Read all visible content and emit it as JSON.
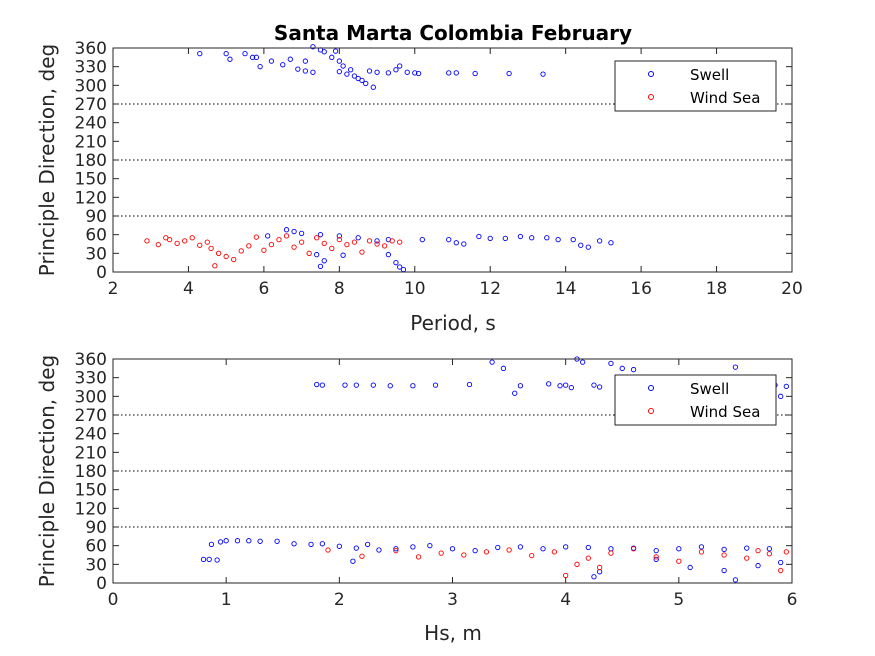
{
  "chart_data": [
    {
      "type": "scatter",
      "title": "Santa Marta Colombia February",
      "xlabel": "Period, s",
      "ylabel": "Principle Direction, deg",
      "xlim": [
        2,
        20
      ],
      "ylim": [
        0,
        360
      ],
      "xticks": [
        "2",
        "4",
        "6",
        "8",
        "10",
        "12",
        "14",
        "16",
        "18",
        "20"
      ],
      "yticks": [
        "0",
        "30",
        "60",
        "90",
        "120",
        "150",
        "180",
        "210",
        "240",
        "270",
        "300",
        "330",
        "360"
      ],
      "reference_lines": [
        90,
        180,
        270
      ],
      "grid": false,
      "legend_position": "top-right",
      "series": [
        {
          "name": "Swell",
          "color": "#0000ff",
          "marker": "open-circle",
          "points": [
            [
              4.3,
              351
            ],
            [
              5.0,
              351
            ],
            [
              5.1,
              342
            ],
            [
              5.5,
              351
            ],
            [
              5.7,
              345
            ],
            [
              5.8,
              345
            ],
            [
              5.9,
              330
            ],
            [
              6.2,
              339
            ],
            [
              6.5,
              333
            ],
            [
              6.7,
              342
            ],
            [
              6.9,
              326
            ],
            [
              7.1,
              323
            ],
            [
              7.3,
              321
            ],
            [
              7.1,
              339
            ],
            [
              7.3,
              362
            ],
            [
              7.5,
              357
            ],
            [
              7.6,
              354
            ],
            [
              7.9,
              355
            ],
            [
              7.8,
              345
            ],
            [
              8.0,
              339
            ],
            [
              8.1,
              331
            ],
            [
              8.3,
              325
            ],
            [
              8.0,
              322
            ],
            [
              8.2,
              318
            ],
            [
              8.4,
              315
            ],
            [
              8.5,
              311
            ],
            [
              8.6,
              308
            ],
            [
              8.7,
              303
            ],
            [
              8.9,
              297
            ],
            [
              8.8,
              323
            ],
            [
              9.0,
              321
            ],
            [
              9.3,
              320
            ],
            [
              9.5,
              325
            ],
            [
              9.6,
              331
            ],
            [
              9.8,
              321
            ],
            [
              10.0,
              320
            ],
            [
              10.1,
              319
            ],
            [
              10.9,
              320
            ],
            [
              11.1,
              320
            ],
            [
              11.6,
              319
            ],
            [
              12.5,
              319
            ],
            [
              13.4,
              318
            ],
            [
              6.1,
              58
            ],
            [
              6.6,
              68
            ],
            [
              6.8,
              65
            ],
            [
              7.0,
              62
            ],
            [
              7.5,
              60
            ],
            [
              8.0,
              58
            ],
            [
              8.5,
              55
            ],
            [
              9.0,
              50
            ],
            [
              9.3,
              52
            ],
            [
              10.2,
              52
            ],
            [
              10.9,
              52
            ],
            [
              11.1,
              47
            ],
            [
              11.3,
              45
            ],
            [
              11.7,
              57
            ],
            [
              12.0,
              54
            ],
            [
              12.4,
              54
            ],
            [
              12.8,
              57
            ],
            [
              13.1,
              55
            ],
            [
              13.5,
              55
            ],
            [
              13.8,
              52
            ],
            [
              14.2,
              52
            ],
            [
              14.4,
              43
            ],
            [
              14.6,
              40
            ],
            [
              14.9,
              50
            ],
            [
              15.2,
              47
            ],
            [
              7.4,
              28
            ],
            [
              7.6,
              18
            ],
            [
              7.5,
              9
            ],
            [
              8.1,
              27
            ],
            [
              9.3,
              28
            ],
            [
              9.5,
              15
            ],
            [
              9.6,
              8
            ],
            [
              9.7,
              4
            ]
          ]
        },
        {
          "name": "Wind Sea",
          "color": "#ff0000",
          "marker": "open-circle",
          "points": [
            [
              2.9,
              50
            ],
            [
              3.2,
              44
            ],
            [
              3.4,
              55
            ],
            [
              3.5,
              52
            ],
            [
              3.7,
              46
            ],
            [
              3.9,
              50
            ],
            [
              4.1,
              55
            ],
            [
              4.3,
              43
            ],
            [
              4.5,
              48
            ],
            [
              4.6,
              38
            ],
            [
              4.7,
              10
            ],
            [
              4.8,
              30
            ],
            [
              5.0,
              25
            ],
            [
              5.2,
              20
            ],
            [
              5.4,
              34
            ],
            [
              5.6,
              42
            ],
            [
              5.8,
              56
            ],
            [
              6.0,
              35
            ],
            [
              6.2,
              44
            ],
            [
              6.4,
              52
            ],
            [
              6.6,
              58
            ],
            [
              6.8,
              40
            ],
            [
              7.0,
              48
            ],
            [
              7.2,
              30
            ],
            [
              7.4,
              55
            ],
            [
              7.6,
              46
            ],
            [
              7.8,
              38
            ],
            [
              8.0,
              52
            ],
            [
              8.2,
              44
            ],
            [
              8.4,
              48
            ],
            [
              8.6,
              32
            ],
            [
              8.8,
              50
            ],
            [
              9.0,
              45
            ],
            [
              9.2,
              42
            ],
            [
              9.4,
              50
            ],
            [
              9.6,
              48
            ]
          ]
        }
      ]
    },
    {
      "type": "scatter",
      "title": "",
      "xlabel": "Hs, m",
      "ylabel": "Principle Direction, deg",
      "xlim": [
        0,
        6
      ],
      "ylim": [
        0,
        360
      ],
      "xticks": [
        "0",
        "1",
        "2",
        "3",
        "4",
        "5",
        "6"
      ],
      "yticks": [
        "0",
        "30",
        "60",
        "90",
        "120",
        "150",
        "180",
        "210",
        "240",
        "270",
        "300",
        "330",
        "360"
      ],
      "reference_lines": [
        90,
        180,
        270
      ],
      "grid": false,
      "legend_position": "top-right",
      "series": [
        {
          "name": "Swell",
          "color": "#0000ff",
          "marker": "open-circle",
          "points": [
            [
              1.8,
              319
            ],
            [
              1.85,
              318
            ],
            [
              2.05,
              318
            ],
            [
              2.15,
              318
            ],
            [
              2.3,
              318
            ],
            [
              2.45,
              317
            ],
            [
              2.65,
              317
            ],
            [
              2.85,
              318
            ],
            [
              3.15,
              319
            ],
            [
              3.35,
              355
            ],
            [
              3.45,
              345
            ],
            [
              3.55,
              305
            ],
            [
              3.6,
              317
            ],
            [
              3.85,
              320
            ],
            [
              3.95,
              317
            ],
            [
              4.0,
              318
            ],
            [
              4.05,
              314
            ],
            [
              4.1,
              360
            ],
            [
              4.15,
              355
            ],
            [
              4.25,
              318
            ],
            [
              4.3,
              315
            ],
            [
              4.4,
              353
            ],
            [
              4.5,
              345
            ],
            [
              4.6,
              343
            ],
            [
              4.75,
              317
            ],
            [
              4.9,
              320
            ],
            [
              5.05,
              318
            ],
            [
              5.2,
              322
            ],
            [
              5.35,
              325
            ],
            [
              5.5,
              347
            ],
            [
              5.7,
              328
            ],
            [
              5.85,
              318
            ],
            [
              5.9,
              300
            ],
            [
              5.95,
              316
            ],
            [
              0.8,
              38
            ],
            [
              0.85,
              38
            ],
            [
              0.87,
              62
            ],
            [
              0.95,
              66
            ],
            [
              1.0,
              68
            ],
            [
              1.1,
              68
            ],
            [
              1.2,
              68
            ],
            [
              1.3,
              67
            ],
            [
              1.45,
              67
            ],
            [
              1.6,
              63
            ],
            [
              1.75,
              62
            ],
            [
              1.85,
              63
            ],
            [
              2.0,
              59
            ],
            [
              2.15,
              56
            ],
            [
              2.25,
              62
            ],
            [
              2.35,
              53
            ],
            [
              2.5,
              55
            ],
            [
              2.65,
              58
            ],
            [
              2.8,
              60
            ],
            [
              3.0,
              55
            ],
            [
              3.2,
              52
            ],
            [
              3.4,
              57
            ],
            [
              3.6,
              58
            ],
            [
              3.8,
              55
            ],
            [
              4.0,
              58
            ],
            [
              4.2,
              57
            ],
            [
              4.4,
              55
            ],
            [
              4.6,
              56
            ],
            [
              4.8,
              52
            ],
            [
              5.0,
              55
            ],
            [
              5.2,
              58
            ],
            [
              5.4,
              54
            ],
            [
              5.6,
              56
            ],
            [
              5.8,
              55
            ],
            [
              4.25,
              10
            ],
            [
              4.3,
              18
            ],
            [
              4.8,
              38
            ],
            [
              5.1,
              25
            ],
            [
              5.4,
              20
            ],
            [
              5.5,
              5
            ],
            [
              5.7,
              28
            ],
            [
              5.9,
              33
            ],
            [
              0.92,
              37
            ],
            [
              2.12,
              35
            ]
          ]
        },
        {
          "name": "Wind Sea",
          "color": "#ff0000",
          "marker": "open-circle",
          "points": [
            [
              1.9,
              53
            ],
            [
              2.2,
              43
            ],
            [
              2.5,
              52
            ],
            [
              2.7,
              42
            ],
            [
              2.9,
              48
            ],
            [
              3.1,
              45
            ],
            [
              3.3,
              50
            ],
            [
              3.5,
              53
            ],
            [
              3.7,
              44
            ],
            [
              3.9,
              50
            ],
            [
              4.0,
              12
            ],
            [
              4.1,
              30
            ],
            [
              4.2,
              40
            ],
            [
              4.3,
              25
            ],
            [
              4.4,
              48
            ],
            [
              4.6,
              55
            ],
            [
              4.8,
              42
            ],
            [
              5.0,
              35
            ],
            [
              5.2,
              50
            ],
            [
              5.4,
              45
            ],
            [
              5.6,
              40
            ],
            [
              5.7,
              52
            ],
            [
              5.8,
              47
            ],
            [
              5.9,
              20
            ],
            [
              5.95,
              50
            ]
          ]
        }
      ]
    }
  ]
}
